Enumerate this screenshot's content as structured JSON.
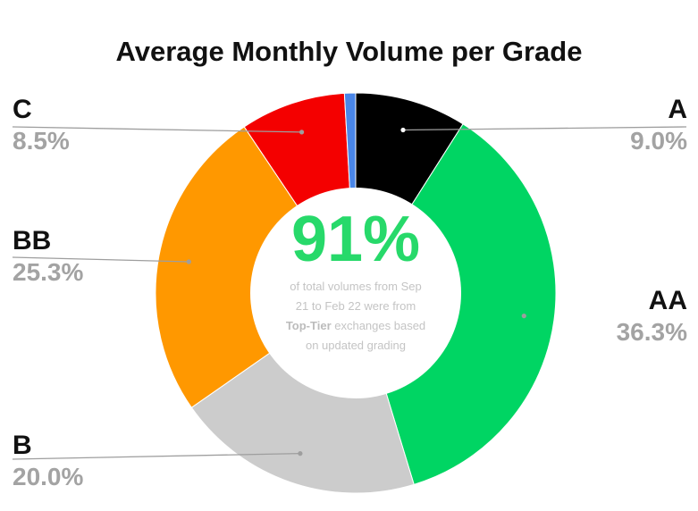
{
  "chart_data": {
    "type": "pie",
    "variant": "donut",
    "title": "Average Monthly Volume per Grade",
    "slices": [
      {
        "label": "A",
        "value": 9.0,
        "display": "9.0%",
        "color": "#000000"
      },
      {
        "label": "AA",
        "value": 36.3,
        "display": "36.3%",
        "color": "#00d563"
      },
      {
        "label": "B",
        "value": 20.0,
        "display": "20.0%",
        "color": "#cccccc"
      },
      {
        "label": "BB",
        "value": 25.3,
        "display": "25.3%",
        "color": "#ff9800"
      },
      {
        "label": "C",
        "value": 8.5,
        "display": "8.5%",
        "color": "#f40000"
      },
      {
        "label": "",
        "value": 0.9,
        "display": "",
        "color": "#4a86e8"
      }
    ],
    "legend": "callout-labels",
    "center": {
      "headline": "91%",
      "text_before": "of total volumes from Sep 21 to Feb 22  were from ",
      "text_bold": "Top-Tier",
      "text_after": " exchanges based on updated grading"
    }
  }
}
